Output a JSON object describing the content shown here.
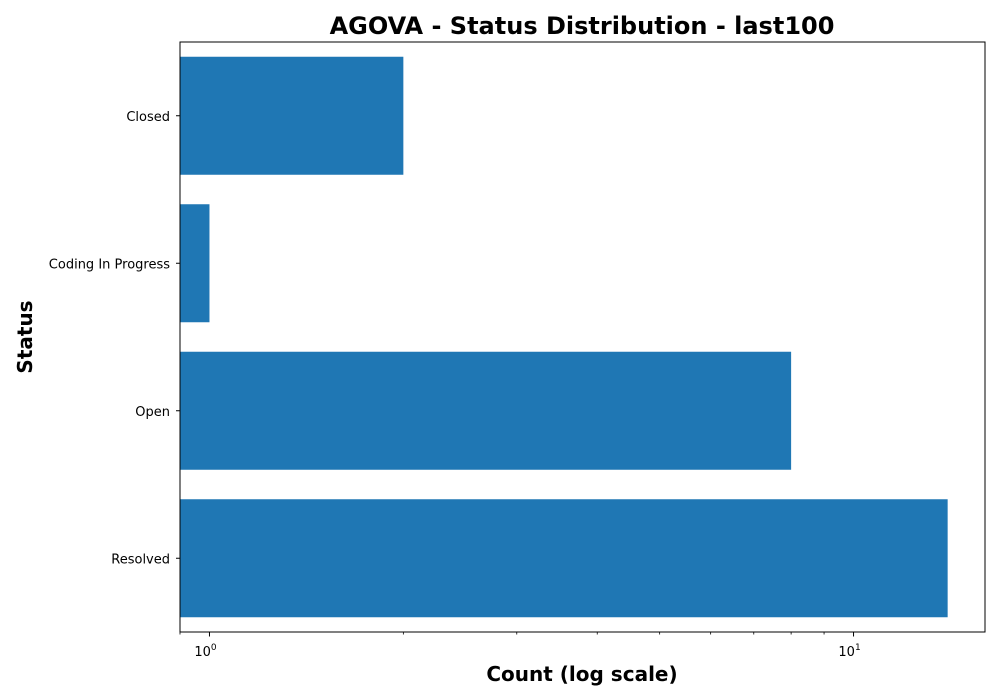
{
  "chart_data": {
    "type": "bar",
    "orientation": "horizontal",
    "title": "AGOVA - Status Distribution - last100",
    "xlabel": "Count (log scale)",
    "ylabel": "Status",
    "x_scale": "log",
    "xlim": [
      0.9,
      16
    ],
    "categories": [
      "Closed",
      "Coding In Progress",
      "Open",
      "Resolved"
    ],
    "values": [
      2,
      1,
      8,
      14
    ],
    "x_major_ticks": [
      {
        "base": "10",
        "exp": "0",
        "value": 1
      },
      {
        "base": "10",
        "exp": "1",
        "value": 10
      }
    ],
    "bar_color": "#1f77b4",
    "grid": false,
    "legend": "none"
  }
}
